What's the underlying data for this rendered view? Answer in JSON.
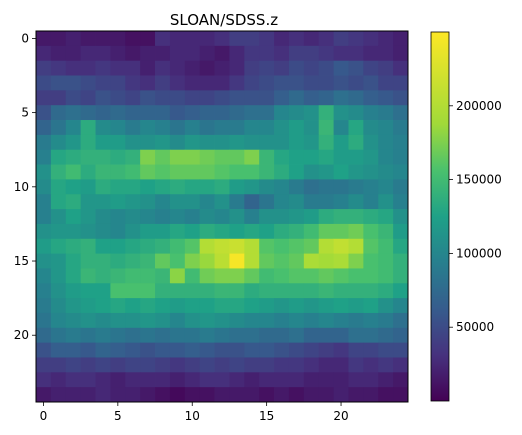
{
  "chart_data": {
    "type": "heatmap",
    "title": "SLOAN/SDSS.z",
    "xlabel": "",
    "ylabel": "",
    "colormap": "viridis",
    "vmin": 0,
    "vmax": 250000,
    "x_ticks": [
      "0",
      "5",
      "10",
      "15",
      "20"
    ],
    "y_ticks": [
      "0",
      "5",
      "10",
      "15",
      "20"
    ],
    "colorbar_ticks": [
      "50000",
      "100000",
      "150000",
      "200000"
    ],
    "grid": false,
    "values": [
      [
        15000,
        15000,
        20000,
        15000,
        15000,
        15000,
        10000,
        10000,
        30000,
        25000,
        25000,
        25000,
        30000,
        40000,
        40000,
        35000,
        25000,
        30000,
        25000,
        30000,
        40000,
        35000,
        30000,
        25000,
        20000
      ],
      [
        25000,
        20000,
        20000,
        25000,
        25000,
        20000,
        15000,
        20000,
        20000,
        25000,
        25000,
        20000,
        15000,
        25000,
        35000,
        35000,
        30000,
        40000,
        40000,
        35000,
        30000,
        30000,
        25000,
        25000,
        20000
      ],
      [
        40000,
        35000,
        30000,
        30000,
        35000,
        30000,
        30000,
        20000,
        30000,
        25000,
        20000,
        15000,
        20000,
        25000,
        40000,
        45000,
        40000,
        50000,
        45000,
        50000,
        60000,
        55000,
        45000,
        40000,
        30000
      ],
      [
        50000,
        55000,
        55000,
        50000,
        45000,
        45000,
        35000,
        30000,
        40000,
        30000,
        25000,
        25000,
        25000,
        35000,
        45000,
        50000,
        55000,
        55000,
        50000,
        50000,
        55000,
        50000,
        55000,
        45000,
        45000
      ],
      [
        40000,
        40000,
        50000,
        45000,
        55000,
        50000,
        45000,
        55000,
        50000,
        50000,
        45000,
        45000,
        50000,
        55000,
        55000,
        55000,
        65000,
        75000,
        65000,
        70000,
        80000,
        75000,
        65000,
        60000,
        55000
      ],
      [
        55000,
        75000,
        80000,
        75000,
        70000,
        75000,
        70000,
        70000,
        70000,
        60000,
        65000,
        70000,
        70000,
        75000,
        80000,
        80000,
        100000,
        105000,
        110000,
        140000,
        110000,
        105000,
        95000,
        90000,
        80000
      ],
      [
        70000,
        85000,
        100000,
        135000,
        105000,
        100000,
        90000,
        100000,
        95000,
        85000,
        95000,
        85000,
        90000,
        90000,
        100000,
        100000,
        110000,
        120000,
        110000,
        145000,
        100000,
        130000,
        105000,
        100000,
        90000
      ],
      [
        90000,
        105000,
        115000,
        135000,
        120000,
        120000,
        110000,
        110000,
        115000,
        105000,
        115000,
        110000,
        110000,
        115000,
        110000,
        110000,
        110000,
        120000,
        115000,
        140000,
        120000,
        135000,
        110000,
        100000,
        95000
      ],
      [
        95000,
        130000,
        135000,
        140000,
        140000,
        135000,
        140000,
        175000,
        165000,
        175000,
        175000,
        170000,
        165000,
        165000,
        175000,
        145000,
        130000,
        125000,
        125000,
        130000,
        120000,
        120000,
        115000,
        100000,
        95000
      ],
      [
        110000,
        140000,
        150000,
        135000,
        145000,
        145000,
        150000,
        165000,
        160000,
        165000,
        165000,
        165000,
        160000,
        155000,
        155000,
        145000,
        135000,
        125000,
        110000,
        115000,
        125000,
        115000,
        110000,
        105000,
        100000
      ],
      [
        105000,
        130000,
        125000,
        120000,
        135000,
        130000,
        130000,
        125000,
        130000,
        135000,
        130000,
        130000,
        135000,
        120000,
        115000,
        105000,
        100000,
        90000,
        80000,
        85000,
        85000,
        90000,
        95000,
        100000,
        90000
      ],
      [
        95000,
        130000,
        135000,
        115000,
        115000,
        120000,
        115000,
        110000,
        100000,
        110000,
        110000,
        100000,
        110000,
        90000,
        70000,
        85000,
        100000,
        105000,
        90000,
        90000,
        95000,
        105000,
        95000,
        110000,
        95000
      ],
      [
        95000,
        110000,
        125000,
        115000,
        105000,
        100000,
        105000,
        100000,
        95000,
        100000,
        95000,
        105000,
        100000,
        110000,
        95000,
        110000,
        110000,
        115000,
        120000,
        135000,
        140000,
        140000,
        135000,
        130000,
        110000
      ],
      [
        110000,
        115000,
        115000,
        110000,
        105000,
        100000,
        110000,
        120000,
        120000,
        130000,
        125000,
        135000,
        130000,
        125000,
        130000,
        125000,
        135000,
        140000,
        150000,
        165000,
        165000,
        170000,
        155000,
        145000,
        120000
      ],
      [
        120000,
        130000,
        135000,
        140000,
        125000,
        125000,
        130000,
        135000,
        140000,
        150000,
        160000,
        200000,
        210000,
        215000,
        200000,
        160000,
        155000,
        160000,
        165000,
        200000,
        210000,
        200000,
        160000,
        150000,
        130000
      ],
      [
        110000,
        115000,
        130000,
        140000,
        140000,
        135000,
        140000,
        145000,
        165000,
        155000,
        175000,
        185000,
        205000,
        245000,
        200000,
        165000,
        160000,
        165000,
        195000,
        190000,
        195000,
        175000,
        155000,
        150000,
        140000
      ],
      [
        100000,
        115000,
        130000,
        145000,
        140000,
        145000,
        150000,
        150000,
        145000,
        180000,
        150000,
        170000,
        175000,
        175000,
        165000,
        150000,
        155000,
        160000,
        160000,
        165000,
        160000,
        155000,
        155000,
        150000,
        140000
      ],
      [
        95000,
        110000,
        120000,
        125000,
        125000,
        155000,
        155000,
        155000,
        140000,
        140000,
        140000,
        140000,
        145000,
        145000,
        135000,
        140000,
        140000,
        140000,
        140000,
        145000,
        140000,
        140000,
        140000,
        135000,
        125000
      ],
      [
        90000,
        105000,
        115000,
        120000,
        125000,
        130000,
        125000,
        130000,
        125000,
        120000,
        125000,
        125000,
        130000,
        130000,
        125000,
        120000,
        115000,
        120000,
        115000,
        120000,
        125000,
        120000,
        125000,
        110000,
        100000
      ],
      [
        85000,
        100000,
        105000,
        110000,
        105000,
        110000,
        110000,
        115000,
        110000,
        100000,
        110000,
        115000,
        110000,
        105000,
        100000,
        100000,
        95000,
        100000,
        95000,
        100000,
        95000,
        90000,
        95000,
        90000,
        80000
      ],
      [
        75000,
        85000,
        90000,
        85000,
        90000,
        85000,
        80000,
        85000,
        80000,
        85000,
        85000,
        90000,
        85000,
        80000,
        80000,
        75000,
        75000,
        80000,
        70000,
        70000,
        70000,
        80000,
        80000,
        75000,
        70000
      ],
      [
        55000,
        65000,
        65000,
        60000,
        70000,
        65000,
        60000,
        55000,
        60000,
        60000,
        65000,
        60000,
        55000,
        55000,
        60000,
        60000,
        55000,
        50000,
        45000,
        40000,
        35000,
        45000,
        45000,
        50000,
        50000
      ],
      [
        40000,
        40000,
        45000,
        40000,
        45000,
        40000,
        45000,
        45000,
        40000,
        35000,
        40000,
        45000,
        40000,
        45000,
        40000,
        40000,
        35000,
        35000,
        30000,
        25000,
        25000,
        35000,
        30000,
        35000,
        30000
      ],
      [
        30000,
        25000,
        30000,
        30000,
        25000,
        20000,
        25000,
        25000,
        25000,
        20000,
        25000,
        30000,
        30000,
        25000,
        20000,
        25000,
        25000,
        25000,
        20000,
        20000,
        20000,
        25000,
        25000,
        20000,
        15000
      ],
      [
        15000,
        20000,
        20000,
        20000,
        25000,
        20000,
        20000,
        15000,
        10000,
        5000,
        10000,
        10000,
        15000,
        15000,
        15000,
        10000,
        15000,
        10000,
        15000,
        15000,
        20000,
        15000,
        15000,
        10000,
        10000
      ]
    ]
  }
}
